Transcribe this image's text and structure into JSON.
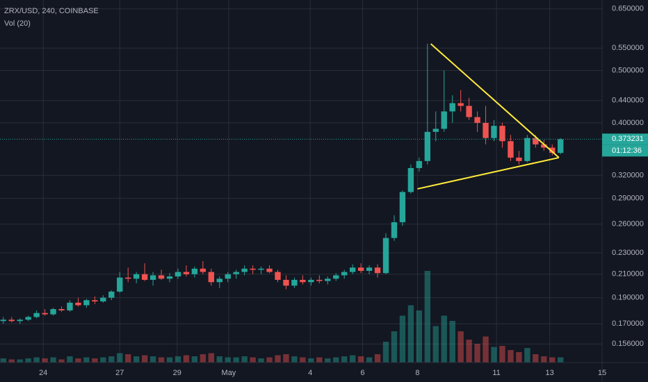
{
  "chart_data": {
    "type": "candlestick",
    "title": "ZRX/USD, 240, COINBASE",
    "indicator": "Vol (20)",
    "log_scale": true,
    "grid": true,
    "up_color": "#26a69a",
    "down_color": "#ef5350",
    "x": [
      0,
      1,
      2,
      3,
      4,
      5,
      6,
      7,
      8,
      9,
      10,
      11,
      12,
      13,
      14,
      15,
      16,
      17,
      18,
      19,
      20,
      21,
      22,
      23,
      24,
      25,
      26,
      27,
      28,
      29,
      30,
      31,
      32,
      33,
      34,
      35,
      36,
      37,
      38,
      39,
      40,
      41,
      42,
      43,
      44,
      45,
      46,
      47,
      48,
      49,
      50,
      51,
      52,
      53,
      54,
      55,
      56,
      57,
      58,
      59,
      60,
      61,
      62,
      63,
      64,
      65,
      66,
      67
    ],
    "open": [
      0.172,
      0.173,
      0.172,
      0.173,
      0.175,
      0.178,
      0.177,
      0.181,
      0.18,
      0.186,
      0.184,
      0.188,
      0.187,
      0.19,
      0.195,
      0.207,
      0.206,
      0.21,
      0.205,
      0.209,
      0.206,
      0.208,
      0.212,
      0.21,
      0.215,
      0.212,
      0.203,
      0.206,
      0.21,
      0.212,
      0.215,
      0.214,
      0.215,
      0.212,
      0.205,
      0.2,
      0.205,
      0.203,
      0.205,
      0.204,
      0.206,
      0.209,
      0.212,
      0.216,
      0.213,
      0.216,
      0.211,
      0.245,
      0.262,
      0.298,
      0.33,
      0.34,
      0.385,
      0.39,
      0.42,
      0.435,
      0.43,
      0.41,
      0.4,
      0.375,
      0.395,
      0.37,
      0.345,
      0.34,
      0.375,
      0.365,
      0.36,
      0.352
    ],
    "high": [
      0.175,
      0.175,
      0.174,
      0.176,
      0.18,
      0.181,
      0.182,
      0.183,
      0.188,
      0.19,
      0.189,
      0.191,
      0.192,
      0.196,
      0.212,
      0.216,
      0.212,
      0.22,
      0.212,
      0.214,
      0.211,
      0.215,
      0.218,
      0.217,
      0.222,
      0.215,
      0.208,
      0.212,
      0.214,
      0.218,
      0.218,
      0.217,
      0.218,
      0.214,
      0.209,
      0.207,
      0.209,
      0.207,
      0.209,
      0.208,
      0.211,
      0.214,
      0.219,
      0.22,
      0.218,
      0.219,
      0.25,
      0.27,
      0.3,
      0.335,
      0.345,
      0.56,
      0.42,
      0.5,
      0.45,
      0.46,
      0.445,
      0.42,
      0.43,
      0.405,
      0.4,
      0.38,
      0.355,
      0.38,
      0.38,
      0.372,
      0.365,
      0.375
    ],
    "low": [
      0.17,
      0.171,
      0.17,
      0.172,
      0.174,
      0.176,
      0.176,
      0.179,
      0.179,
      0.183,
      0.182,
      0.185,
      0.186,
      0.188,
      0.194,
      0.203,
      0.202,
      0.204,
      0.2,
      0.205,
      0.203,
      0.206,
      0.208,
      0.207,
      0.21,
      0.2,
      0.198,
      0.203,
      0.206,
      0.209,
      0.21,
      0.21,
      0.211,
      0.203,
      0.197,
      0.198,
      0.201,
      0.2,
      0.202,
      0.201,
      0.204,
      0.206,
      0.21,
      0.211,
      0.21,
      0.207,
      0.21,
      0.242,
      0.258,
      0.296,
      0.325,
      0.335,
      0.37,
      0.385,
      0.4,
      0.42,
      0.405,
      0.385,
      0.365,
      0.37,
      0.36,
      0.34,
      0.335,
      0.338,
      0.36,
      0.355,
      0.348,
      0.35
    ],
    "close": [
      0.173,
      0.172,
      0.173,
      0.175,
      0.178,
      0.177,
      0.181,
      0.18,
      0.186,
      0.184,
      0.188,
      0.187,
      0.19,
      0.195,
      0.207,
      0.206,
      0.21,
      0.205,
      0.209,
      0.206,
      0.208,
      0.212,
      0.21,
      0.215,
      0.212,
      0.203,
      0.206,
      0.21,
      0.212,
      0.215,
      0.214,
      0.215,
      0.212,
      0.205,
      0.2,
      0.205,
      0.203,
      0.205,
      0.204,
      0.206,
      0.209,
      0.212,
      0.216,
      0.213,
      0.216,
      0.211,
      0.245,
      0.262,
      0.298,
      0.33,
      0.34,
      0.385,
      0.39,
      0.42,
      0.435,
      0.43,
      0.41,
      0.4,
      0.375,
      0.395,
      0.37,
      0.345,
      0.34,
      0.375,
      0.365,
      0.36,
      0.352,
      0.373
    ],
    "volume": [
      4,
      3,
      3,
      4,
      5,
      4,
      5,
      3,
      6,
      4,
      5,
      4,
      5,
      6,
      9,
      8,
      6,
      7,
      6,
      5,
      5,
      6,
      7,
      6,
      8,
      9,
      6,
      5,
      5,
      6,
      5,
      4,
      5,
      7,
      8,
      6,
      5,
      4,
      5,
      4,
      5,
      6,
      7,
      6,
      5,
      8,
      20,
      30,
      45,
      55,
      50,
      88,
      35,
      45,
      40,
      30,
      22,
      18,
      25,
      15,
      16,
      12,
      10,
      14,
      8,
      6,
      5,
      5
    ],
    "volume_lim": [
      0,
      100
    ],
    "xlim": [
      -0.4,
      72
    ],
    "xticks": [
      {
        "value": 4.8,
        "label": "24"
      },
      {
        "value": 14.0,
        "label": "27"
      },
      {
        "value": 20.9,
        "label": "29"
      },
      {
        "value": 27.1,
        "label": "May"
      },
      {
        "value": 36.9,
        "label": "4"
      },
      {
        "value": 43.2,
        "label": "6"
      },
      {
        "value": 49.8,
        "label": "8"
      },
      {
        "value": 59.3,
        "label": "11"
      },
      {
        "value": 65.7,
        "label": "13"
      },
      {
        "value": 72,
        "label": "15"
      }
    ],
    "ylim": [
      0.145,
      0.675
    ],
    "yticks": [
      {
        "value": 0.65,
        "label": "0.650000"
      },
      {
        "value": 0.55,
        "label": "0.550000"
      },
      {
        "value": 0.5,
        "label": "0.500000"
      },
      {
        "value": 0.44,
        "label": "0.440000"
      },
      {
        "value": 0.4,
        "label": "0.400000"
      },
      {
        "value": 0.32,
        "label": "0.320000"
      },
      {
        "value": 0.29,
        "label": "0.290000"
      },
      {
        "value": 0.26,
        "label": "0.260000"
      },
      {
        "value": 0.23,
        "label": "0.230000"
      },
      {
        "value": 0.21,
        "label": "0.210000"
      },
      {
        "value": 0.19,
        "label": "0.190000"
      },
      {
        "value": 0.17,
        "label": "0.170000"
      },
      {
        "value": 0.156,
        "label": "0.156000"
      }
    ],
    "last_price": 0.373231,
    "countdown": "01:12:36",
    "trendlines": [
      {
        "color": "#ffeb3b",
        "x": [
          51.4,
          66.8
        ],
        "y": [
          0.56,
          0.345
        ]
      },
      {
        "color": "#ffeb3b",
        "x": [
          49.8,
          66.8
        ],
        "y": [
          0.302,
          0.345
        ]
      }
    ]
  }
}
